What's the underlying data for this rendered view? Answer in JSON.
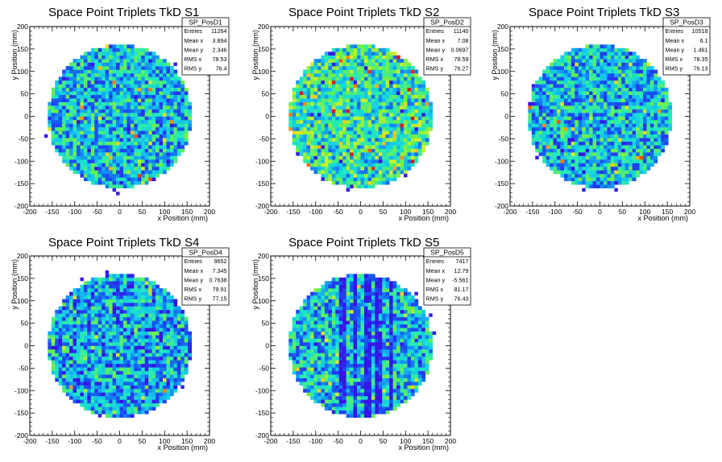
{
  "chart_data": [
    {
      "type": "heatmap",
      "title": "Space Point Triplets TkD S1",
      "xlabel": "x Position (mm)",
      "ylabel": "y Position (mm)",
      "xlim": [
        -200,
        200
      ],
      "ylim": [
        -200,
        200
      ],
      "xticks": [
        "-200",
        "-150",
        "-100",
        "-50",
        "0",
        "50",
        "100",
        "150",
        "200"
      ],
      "yticks": [
        "-200",
        "-150",
        "-100",
        "-50",
        "0",
        "50",
        "100",
        "150",
        "200"
      ],
      "stats": {
        "name": "SP_PosD1",
        "rows": [
          {
            "label": "Entries",
            "value": "11264"
          },
          {
            "label": "Mean x",
            "value": "3.894"
          },
          {
            "label": "Mean y",
            "value": "2.346"
          },
          {
            "label": "RMS x",
            "value": "78.53"
          },
          {
            "label": "RMS y",
            "value": "76.4"
          }
        ]
      },
      "region_radius": 160,
      "pattern": "uniform"
    },
    {
      "type": "heatmap",
      "title": "Space Point Triplets TkD S2",
      "xlabel": "x Position (mm)",
      "ylabel": "y Position (mm)",
      "xlim": [
        -200,
        200
      ],
      "ylim": [
        -200,
        200
      ],
      "xticks": [
        "-200",
        "-150",
        "-100",
        "-50",
        "0",
        "50",
        "100",
        "150",
        "200"
      ],
      "yticks": [
        "-200",
        "-150",
        "-100",
        "-50",
        "0",
        "50",
        "100",
        "150",
        "200"
      ],
      "stats": {
        "name": "SP_PosD2",
        "rows": [
          {
            "label": "Entries",
            "value": "11140"
          },
          {
            "label": "Mean x",
            "value": "7.08"
          },
          {
            "label": "Mean y",
            "value": "0.0697"
          },
          {
            "label": "RMS x",
            "value": "78.59"
          },
          {
            "label": "RMS y",
            "value": "76.27"
          }
        ]
      },
      "region_radius": 160,
      "pattern": "hot"
    },
    {
      "type": "heatmap",
      "title": "Space Point Triplets TkD S3",
      "xlabel": "x Position (mm)",
      "ylabel": "y Position (mm)",
      "xlim": [
        -200,
        200
      ],
      "ylim": [
        -200,
        200
      ],
      "xticks": [
        "-200",
        "-150",
        "-100",
        "-50",
        "0",
        "50",
        "100",
        "150",
        "200"
      ],
      "yticks": [
        "-200",
        "-150",
        "-100",
        "-50",
        "0",
        "50",
        "100",
        "150",
        "200"
      ],
      "stats": {
        "name": "SP_PosD3",
        "rows": [
          {
            "label": "Entries",
            "value": "10518"
          },
          {
            "label": "Mean x",
            "value": "6.1"
          },
          {
            "label": "Mean y",
            "value": "1.461"
          },
          {
            "label": "RMS x",
            "value": "78.35"
          },
          {
            "label": "RMS y",
            "value": "76.13"
          }
        ]
      },
      "region_radius": 160,
      "pattern": "uniform"
    },
    {
      "type": "heatmap",
      "title": "Space Point Triplets TkD S4",
      "xlabel": "x Position (mm)",
      "ylabel": "y Position (mm)",
      "xlim": [
        -200,
        200
      ],
      "ylim": [
        -200,
        200
      ],
      "xticks": [
        "-200",
        "-150",
        "-100",
        "-50",
        "0",
        "50",
        "100",
        "150",
        "200"
      ],
      "yticks": [
        "-200",
        "-150",
        "-100",
        "-50",
        "0",
        "50",
        "100",
        "150",
        "200"
      ],
      "stats": {
        "name": "SP_PosD4",
        "rows": [
          {
            "label": "Entries",
            "value": "9652"
          },
          {
            "label": "Mean x",
            "value": "7.345"
          },
          {
            "label": "Mean y",
            "value": "0.7638"
          },
          {
            "label": "RMS x",
            "value": "79.91"
          },
          {
            "label": "RMS y",
            "value": "77.15"
          }
        ]
      },
      "region_radius": 160,
      "pattern": "grid"
    },
    {
      "type": "heatmap",
      "title": "Space Point Triplets TkD S5",
      "xlabel": "x Position (mm)",
      "ylabel": "y Position (mm)",
      "xlim": [
        -200,
        200
      ],
      "ylim": [
        -200,
        200
      ],
      "xticks": [
        "-200",
        "-150",
        "-100",
        "-50",
        "0",
        "50",
        "100",
        "150",
        "200"
      ],
      "yticks": [
        "-200",
        "-150",
        "-100",
        "-50",
        "0",
        "50",
        "100",
        "150",
        "200"
      ],
      "stats": {
        "name": "SP_PosD5",
        "rows": [
          {
            "label": "Entries",
            "value": "7417"
          },
          {
            "label": "Mean x",
            "value": "12.79"
          },
          {
            "label": "Mean y",
            "value": "-5.561"
          },
          {
            "label": "RMS x",
            "value": "81.17"
          },
          {
            "label": "RMS y",
            "value": "76.43"
          }
        ]
      },
      "region_radius": 160,
      "pattern": "stripes"
    }
  ]
}
